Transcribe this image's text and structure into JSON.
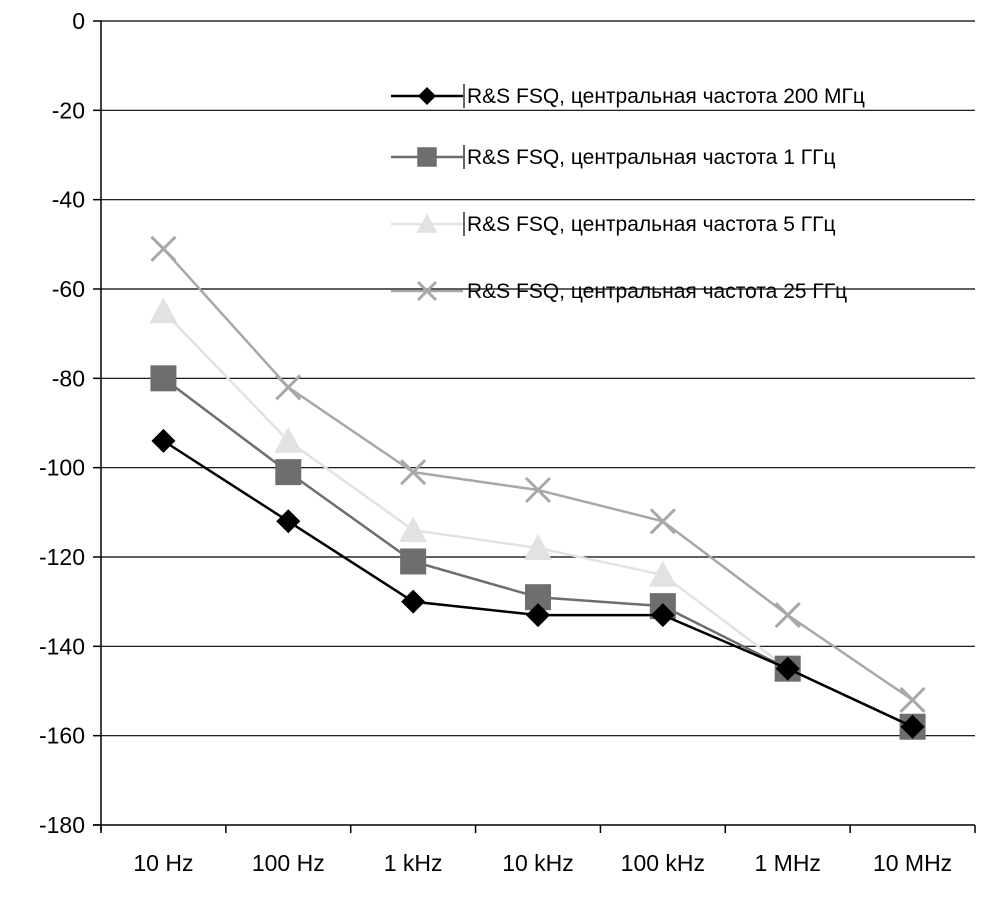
{
  "chart_data": {
    "type": "line",
    "categories": [
      "10 Hz",
      "100 Hz",
      "1 kHz",
      "10 kHz",
      "100 kHz",
      "1 MHz",
      "10 MHz"
    ],
    "title": "",
    "xlabel": "",
    "ylabel": "",
    "ylim": [
      -180,
      0
    ],
    "yticks": [
      0,
      -20,
      -40,
      -60,
      -80,
      -100,
      -120,
      -140,
      -160,
      -180
    ],
    "grid": "horizontal",
    "legend_position": "top-right",
    "series": [
      {
        "name": "R&S FSQ, центральная частота 200 МГц",
        "marker": "diamond",
        "color": "#000000",
        "values": [
          -94,
          -112,
          -130,
          -133,
          -133,
          -145,
          -158
        ]
      },
      {
        "name": "R&S FSQ, центральная частота 1 ГГц",
        "marker": "square",
        "color": "#6e6e6e",
        "values": [
          -80,
          -101,
          -121,
          -129,
          -131,
          -145,
          -158
        ]
      },
      {
        "name": "R&S FSQ, центральная частота 5 ГГц",
        "marker": "triangle",
        "color": "#e2e2e2",
        "values": [
          -65,
          -94,
          -114,
          -118,
          -124,
          -145,
          -158
        ]
      },
      {
        "name": "R&S FSQ, центральная частота 25 ГГц",
        "marker": "x",
        "color": "#a8a8a8",
        "values": [
          -51,
          -82,
          -101,
          -105,
          -112,
          -133,
          -152
        ]
      }
    ]
  }
}
